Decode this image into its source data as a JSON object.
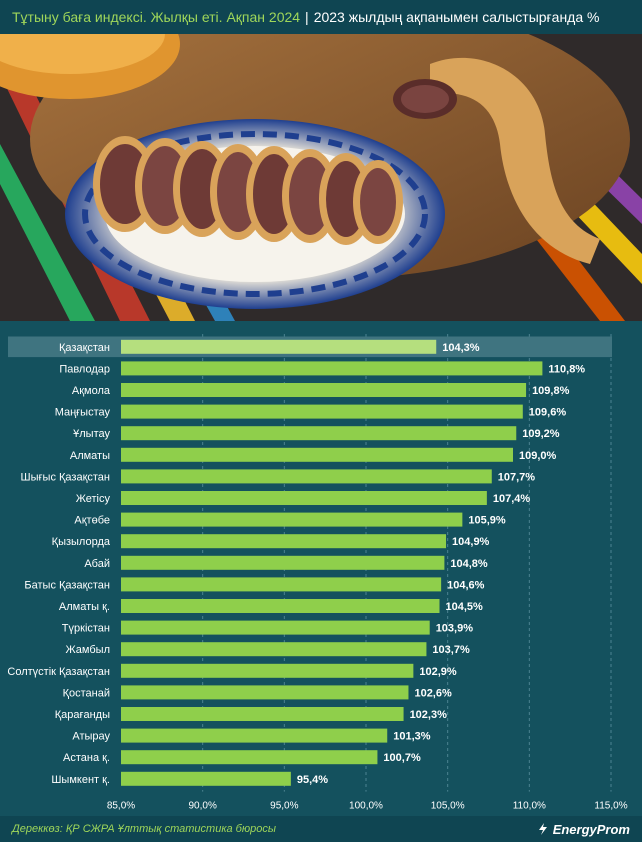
{
  "header": {
    "title": "Тұтыну баға индексі. Жылқы еті. Ақпан 2024",
    "separator": "|",
    "subtitle": "2023 жылдың ақпанымен салыстырғанда %"
  },
  "photo": {
    "subject": "kazy-sausage-slices-on-plate"
  },
  "chart_data": {
    "type": "bar",
    "orientation": "horizontal",
    "categories": [
      "Қазақстан",
      "Павлодар",
      "Ақмола",
      "Маңғыстау",
      "Ұлытау",
      "Алматы",
      "Шығыс Қазақстан",
      "Жетісу",
      "Ақтөбе",
      "Қызылорда",
      "Абай",
      "Батыс Қазақстан",
      "Алматы қ.",
      "Түркістан",
      "Жамбыл",
      "Солтүстік Қазақстан",
      "Қостанай",
      "Қарағанды",
      "Атырау",
      "Астана қ.",
      "Шымкент қ."
    ],
    "values": [
      104.3,
      110.8,
      109.8,
      109.6,
      109.2,
      109.0,
      107.7,
      107.4,
      105.9,
      104.9,
      104.8,
      104.6,
      104.5,
      103.9,
      103.7,
      102.9,
      102.6,
      102.3,
      101.3,
      100.7,
      95.4
    ],
    "value_labels": [
      "104,3%",
      "110,8%",
      "109,8%",
      "109,6%",
      "109,2%",
      "109,0%",
      "107,7%",
      "107,4%",
      "105,9%",
      "104,9%",
      "104,8%",
      "104,6%",
      "104,5%",
      "103,9%",
      "103,7%",
      "102,9%",
      "102,6%",
      "102,3%",
      "101,3%",
      "100,7%",
      "95,4%"
    ],
    "xlim": [
      85,
      115
    ],
    "xticks": [
      85,
      90,
      95,
      100,
      105,
      110,
      115
    ],
    "xtick_labels": [
      "85,0%",
      "90,0%",
      "95,0%",
      "100,0%",
      "105,0%",
      "110,0%",
      "115,0%"
    ],
    "grid": "vertical-dashed",
    "highlight": "Қазақстан",
    "colors": {
      "bar": "#8fcf4b",
      "highlight_bar": "#b5df7e",
      "highlight_row": "#3f7480",
      "grid": "#4b8391",
      "text": "#ffffff"
    }
  },
  "footer": {
    "source": "Дереккөз: ҚР СЖРА Ұлттық статистика бюросы",
    "logo": "EnergyProm"
  }
}
